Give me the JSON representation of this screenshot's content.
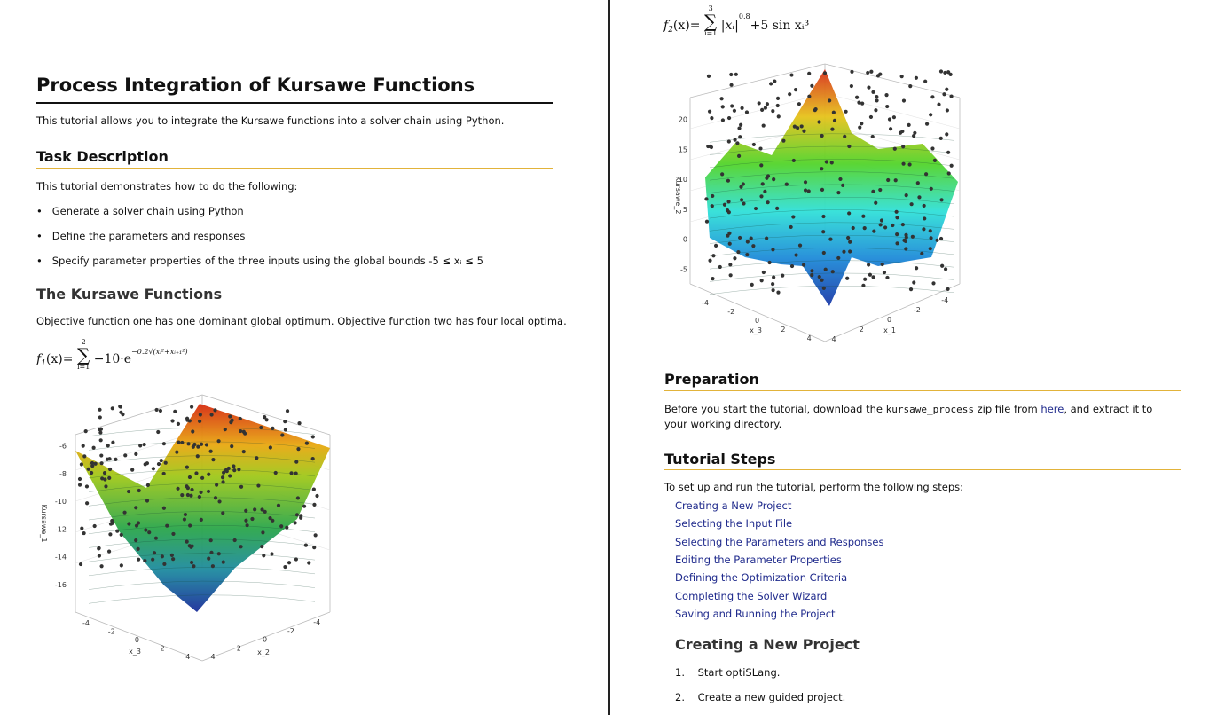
{
  "left": {
    "title": "Process Integration of Kursawe Functions",
    "intro": "This tutorial allows you to integrate the Kursawe functions into a solver chain using Python.",
    "task_heading": "Task Description",
    "task_intro": "This tutorial demonstrates how to do the following:",
    "bullets": [
      "Generate a solver chain using Python",
      "Define the parameters and responses",
      "Specify parameter properties of the three inputs using the global bounds -5 ≤ xᵢ ≤ 5"
    ],
    "kursawe_heading": "The Kursawe Functions",
    "kursawe_text": "Objective function one has one dominant global optimum. Objective function two has four local optima.",
    "formula": {
      "name": "f",
      "index": "1",
      "arg": "(x)=",
      "sum_top": "2",
      "sum_bottom": "i=1",
      "body": "−10·e",
      "exponent": "−0.2√(xᵢ²+xᵢ₊₁²)"
    },
    "plot": {
      "y_label": "Kursawe_1",
      "y_ticks": [
        "-6",
        "-8",
        "-10",
        "-12",
        "-14",
        "-16"
      ],
      "x_label": "x_3",
      "x_ticks": [
        "-4",
        "-2",
        "0",
        "2",
        "4"
      ],
      "z_label": "x_2",
      "z_ticks": [
        "4",
        "2",
        "0",
        "-2",
        "-4"
      ]
    }
  },
  "right": {
    "formula": {
      "name": "f",
      "index": "2",
      "arg": "(x)=",
      "sum_top": "3",
      "sum_bottom": "i=1",
      "body": "|xᵢ|",
      "exponent": "0.8",
      "tail": "+5 sin xᵢ³"
    },
    "plot": {
      "y_label": "Kursawe_2",
      "y_ticks": [
        "20",
        "15",
        "10",
        "5",
        "0",
        "-5"
      ],
      "x_label": "x_3",
      "x_ticks": [
        "-4",
        "-2",
        "0",
        "2",
        "4"
      ],
      "z_label": "x_1",
      "z_ticks": [
        "4",
        "2",
        "0",
        "-2",
        "-4"
      ]
    },
    "prep_heading": "Preparation",
    "prep_text": {
      "before": "Before you start the tutorial, download the ",
      "code": "kursawe_process",
      "middle": " zip file from ",
      "link": "here",
      "after": ", and extract it to your working directory."
    },
    "steps_heading": "Tutorial Steps",
    "steps_intro": "To set up and run the tutorial, perform the following steps:",
    "links": [
      "Creating a New Project",
      "Selecting the Input File",
      "Selecting the Parameters and Responses",
      "Editing the Parameter Properties",
      "Defining the Optimization Criteria",
      "Completing the Solver Wizard",
      "Saving and Running the Project"
    ],
    "sub_heading": "Creating a New Project",
    "numbered": [
      {
        "num": "1.",
        "text": "Start optiSLang."
      },
      {
        "num": "2.",
        "text": "Create a new guided project."
      }
    ]
  }
}
